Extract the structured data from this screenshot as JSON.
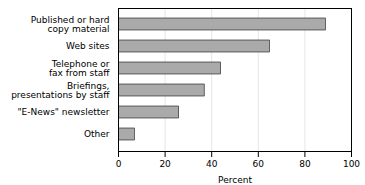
{
  "chart_data": {
    "type": "bar",
    "orientation": "horizontal",
    "categories": [
      "Other",
      "\"E-News\" newsletter",
      "Briefings,\npresentations by staff",
      "Telephone or\nfax from staff",
      "Web sites",
      "Published or hard\ncopy material"
    ],
    "values": [
      7,
      26,
      37,
      44,
      65,
      89
    ],
    "color": "#aaaaaa",
    "xlabel": "Percent",
    "xlim": [
      0,
      100
    ],
    "xticks": [
      0,
      20,
      40,
      60,
      80,
      100
    ],
    "grid": true
  }
}
